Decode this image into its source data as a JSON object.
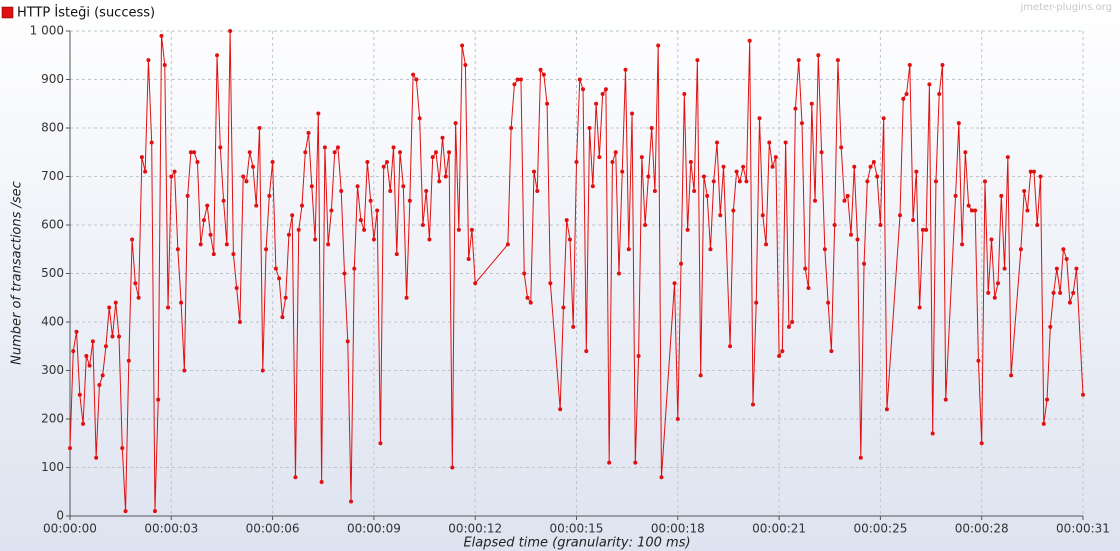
{
  "chart_data": {
    "type": "line",
    "watermark": "jmeter-plugins.org",
    "x_label": "Elapsed time (granularity: 100 ms)",
    "y_label": "Number of transactions /sec",
    "xlim": [
      0,
      31
    ],
    "ylim": [
      0,
      1000
    ],
    "grid": true,
    "legend": "top-left",
    "xticks": [
      {
        "value": 0,
        "label": "00:00:00"
      },
      {
        "value": 3.1,
        "label": "00:00:03"
      },
      {
        "value": 6.2,
        "label": "00:00:06"
      },
      {
        "value": 9.3,
        "label": "00:00:09"
      },
      {
        "value": 12.4,
        "label": "00:00:12"
      },
      {
        "value": 15.5,
        "label": "00:00:15"
      },
      {
        "value": 18.6,
        "label": "00:00:18"
      },
      {
        "value": 21.7,
        "label": "00:00:21"
      },
      {
        "value": 24.8,
        "label": "00:00:25"
      },
      {
        "value": 27.9,
        "label": "00:00:28"
      },
      {
        "value": 31,
        "label": "00:00:31"
      }
    ],
    "yticks": [
      0,
      100,
      200,
      300,
      400,
      500,
      600,
      700,
      800,
      900,
      {
        "value": 1000,
        "label": "1 000"
      }
    ],
    "x": [
      0,
      0.1,
      0.2,
      0.3,
      0.4,
      0.5,
      0.6,
      0.7,
      0.8,
      0.9,
      1,
      1.1,
      1.2,
      1.3,
      1.4,
      1.5,
      1.6,
      1.7,
      1.8,
      1.9,
      2,
      2.1,
      2.2,
      2.3,
      2.4,
      2.5,
      2.6,
      2.7,
      2.8,
      2.9,
      3,
      3.1,
      3.2,
      3.3,
      3.4,
      3.5,
      3.6,
      3.7,
      3.8,
      3.9,
      4,
      4.1,
      4.2,
      4.3,
      4.4,
      4.5,
      4.6,
      4.7,
      4.8,
      4.9,
      5,
      5.1,
      5.2,
      5.3,
      5.4,
      5.5,
      5.6,
      5.7,
      5.8,
      5.9,
      6,
      6.1,
      6.2,
      6.3,
      6.4,
      6.5,
      6.6,
      6.7,
      6.8,
      6.9,
      7,
      7.1,
      7.2,
      7.3,
      7.4,
      7.5,
      7.6,
      7.7,
      7.8,
      7.9,
      8,
      8.1,
      8.2,
      8.3,
      8.4,
      8.5,
      8.6,
      8.7,
      8.8,
      8.9,
      9,
      9.1,
      9.2,
      9.3,
      9.4,
      9.5,
      9.6,
      9.7,
      9.8,
      9.9,
      10,
      10.1,
      10.2,
      10.3,
      10.4,
      10.5,
      10.6,
      10.7,
      10.8,
      10.9,
      11,
      11.1,
      11.2,
      11.3,
      11.4,
      11.5,
      11.6,
      11.7,
      11.8,
      11.9,
      12,
      12.1,
      12.2,
      12.3,
      12.4,
      13.4,
      13.5,
      13.6,
      13.7,
      13.8,
      13.9,
      14,
      14.1,
      14.2,
      14.3,
      14.4,
      14.5,
      14.6,
      14.7,
      15,
      15.1,
      15.2,
      15.3,
      15.4,
      15.5,
      15.6,
      15.7,
      15.8,
      15.9,
      16,
      16.1,
      16.2,
      16.3,
      16.4,
      16.5,
      16.6,
      16.7,
      16.8,
      16.9,
      17,
      17.1,
      17.2,
      17.3,
      17.4,
      17.5,
      17.6,
      17.7,
      17.8,
      17.9,
      18,
      18.1,
      18.5,
      18.6,
      18.7,
      18.8,
      18.9,
      19,
      19.1,
      19.2,
      19.3,
      19.4,
      19.5,
      19.6,
      19.7,
      19.8,
      19.9,
      20,
      20.2,
      20.3,
      20.4,
      20.5,
      20.6,
      20.7,
      20.8,
      20.9,
      21,
      21.1,
      21.2,
      21.3,
      21.4,
      21.5,
      21.6,
      21.7,
      21.8,
      21.9,
      22,
      22.1,
      22.2,
      22.3,
      22.4,
      22.5,
      22.6,
      22.7,
      22.8,
      22.9,
      23,
      23.1,
      23.2,
      23.3,
      23.4,
      23.5,
      23.6,
      23.7,
      23.8,
      23.9,
      24,
      24.1,
      24.2,
      24.3,
      24.4,
      24.5,
      24.6,
      24.7,
      24.8,
      24.9,
      25,
      25.4,
      25.5,
      25.6,
      25.7,
      25.8,
      25.9,
      26,
      26.1,
      26.2,
      26.3,
      26.4,
      26.5,
      26.6,
      26.7,
      26.8,
      27.1,
      27.2,
      27.3,
      27.4,
      27.5,
      27.6,
      27.7,
      27.8,
      27.9,
      28,
      28.1,
      28.2,
      28.3,
      28.4,
      28.5,
      28.6,
      28.7,
      28.8,
      29.1,
      29.2,
      29.3,
      29.4,
      29.5,
      29.6,
      29.7,
      29.8,
      29.9,
      30,
      30.1,
      30.2,
      30.3,
      30.4,
      30.5,
      30.6,
      30.7,
      30.8,
      31
    ],
    "series": [
      {
        "name": "HTTP İsteği (success)",
        "color": "#e01010",
        "values": [
          140,
          340,
          380,
          250,
          190,
          330,
          310,
          360,
          120,
          270,
          290,
          350,
          430,
          370,
          440,
          370,
          140,
          10,
          320,
          570,
          480,
          450,
          740,
          710,
          940,
          770,
          10,
          240,
          990,
          930,
          430,
          700,
          710,
          550,
          440,
          300,
          660,
          750,
          750,
          730,
          560,
          610,
          640,
          580,
          540,
          950,
          760,
          650,
          560,
          1000,
          540,
          470,
          400,
          700,
          690,
          750,
          720,
          640,
          800,
          300,
          550,
          660,
          730,
          510,
          490,
          410,
          450,
          580,
          620,
          80,
          590,
          640,
          750,
          790,
          680,
          570,
          830,
          70,
          760,
          560,
          630,
          750,
          760,
          670,
          500,
          360,
          30,
          510,
          680,
          610,
          590,
          730,
          650,
          570,
          630,
          150,
          720,
          730,
          670,
          760,
          540,
          750,
          680,
          450,
          650,
          910,
          900,
          820,
          600,
          670,
          570,
          740,
          750,
          690,
          780,
          700,
          750,
          100,
          810,
          590,
          970,
          930,
          530,
          590,
          480,
          560,
          800,
          890,
          900,
          900,
          500,
          450,
          440,
          710,
          670,
          920,
          910,
          850,
          480,
          220,
          430,
          610,
          570,
          390,
          730,
          900,
          880,
          340,
          800,
          680,
          850,
          740,
          870,
          880,
          110,
          730,
          750,
          500,
          710,
          920,
          550,
          830,
          110,
          330,
          740,
          600,
          700,
          800,
          670,
          970,
          80,
          480,
          200,
          520,
          870,
          590,
          730,
          670,
          940,
          290,
          700,
          660,
          550,
          690,
          770,
          620,
          720,
          350,
          630,
          710,
          690,
          720,
          690,
          980,
          230,
          440,
          820,
          620,
          560,
          770,
          720,
          740,
          330,
          340,
          770,
          390,
          400,
          840,
          940,
          810,
          510,
          470,
          850,
          650,
          950,
          750,
          550,
          440,
          340,
          600,
          940,
          760,
          650,
          660,
          580,
          720,
          570,
          120,
          520,
          690,
          720,
          730,
          700,
          600,
          820,
          220,
          620,
          860,
          870,
          930,
          610,
          710,
          430,
          590,
          590,
          890,
          170,
          690,
          870,
          930,
          240,
          660,
          810,
          560,
          750,
          640,
          630,
          630,
          320,
          150,
          690,
          460,
          570,
          450,
          480,
          660,
          510,
          740,
          290,
          550,
          670,
          630,
          710,
          710,
          600,
          700,
          190,
          240,
          390,
          460,
          510,
          460,
          550,
          530,
          440,
          460,
          510,
          250
        ]
      }
    ]
  }
}
